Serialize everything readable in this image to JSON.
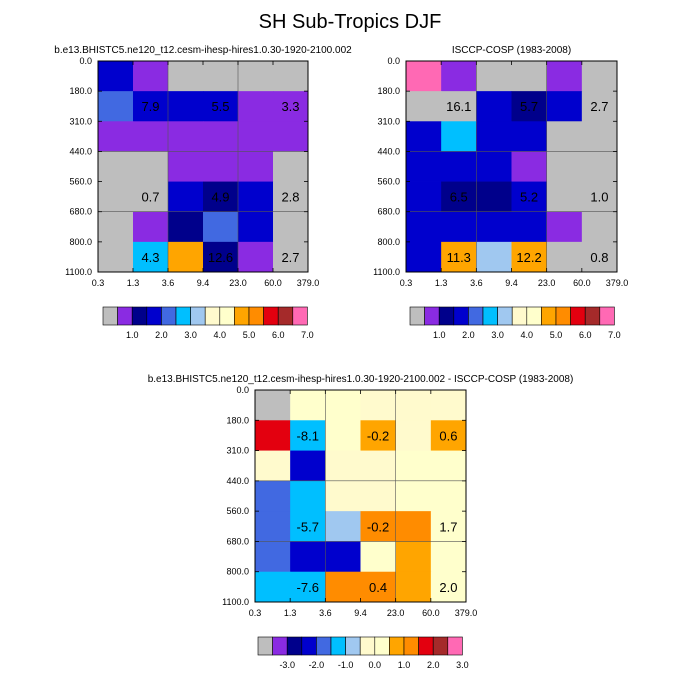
{
  "figure_title": "SH Sub-Tropics DJF",
  "chart_data": [
    {
      "type": "heatmap",
      "title": "b.e13.BHISTC5.ne120_t12.cesm-ihesp-hires1.0.30-1920-2100.002",
      "x_edges": [
        "0.3",
        "1.3",
        "3.6",
        "9.4",
        "23.0",
        "60.0",
        "379.0"
      ],
      "y_edges": [
        "0.0",
        "180.0",
        "310.0",
        "440.0",
        "560.0",
        "680.0",
        "800.0",
        "1100.0"
      ],
      "cells": [
        [
          11,
          13,
          0,
          0,
          0,
          0
        ],
        [
          10,
          11,
          11,
          11,
          13,
          13
        ],
        [
          13,
          13,
          13,
          13,
          13,
          13
        ],
        [
          0,
          0,
          13,
          13,
          13,
          0
        ],
        [
          0,
          0,
          11,
          12,
          11,
          0
        ],
        [
          0,
          13,
          12,
          10,
          11,
          0
        ],
        [
          0,
          9,
          5,
          12,
          13,
          0
        ]
      ],
      "summaries": [
        {
          "text": "7.9",
          "col": 1,
          "row": 1
        },
        {
          "text": "5.5",
          "col": 3,
          "row": 1
        },
        {
          "text": "3.3",
          "col": 5,
          "row": 1
        },
        {
          "text": "0.7",
          "col": 1,
          "row": 4
        },
        {
          "text": "4.9",
          "col": 3,
          "row": 4
        },
        {
          "text": "2.8",
          "col": 5,
          "row": 4
        },
        {
          "text": "4.3",
          "col": 1,
          "row": 6
        },
        {
          "text": "12.6",
          "col": 3,
          "row": 6
        },
        {
          "text": "2.7",
          "col": 5,
          "row": 6
        }
      ],
      "colorbar_labels": [
        "1.0",
        "2.0",
        "3.0",
        "4.0",
        "5.0",
        "6.0",
        "7.0"
      ]
    },
    {
      "type": "heatmap",
      "title": "ISCCP-COSP (1983-2008)",
      "x_edges": [
        "0.3",
        "1.3",
        "3.6",
        "9.4",
        "23.0",
        "60.0",
        "379.0"
      ],
      "y_edges": [
        "0.0",
        "180.0",
        "310.0",
        "440.0",
        "560.0",
        "680.0",
        "800.0",
        "1100.0"
      ],
      "cells": [
        [
          1,
          13,
          0,
          0,
          13,
          0
        ],
        [
          0,
          0,
          11,
          12,
          11,
          0
        ],
        [
          11,
          9,
          11,
          11,
          0,
          0
        ],
        [
          11,
          11,
          11,
          13,
          0,
          0
        ],
        [
          11,
          12,
          12,
          11,
          0,
          0
        ],
        [
          11,
          11,
          11,
          11,
          13,
          0
        ],
        [
          11,
          5,
          8,
          5,
          0,
          0
        ]
      ],
      "summaries": [
        {
          "text": "16.1",
          "col": 1,
          "row": 1
        },
        {
          "text": "5.7",
          "col": 3,
          "row": 1
        },
        {
          "text": "2.7",
          "col": 5,
          "row": 1
        },
        {
          "text": "6.5",
          "col": 1,
          "row": 4
        },
        {
          "text": "5.2",
          "col": 3,
          "row": 4
        },
        {
          "text": "1.0",
          "col": 5,
          "row": 4
        },
        {
          "text": "11.3",
          "col": 1,
          "row": 6
        },
        {
          "text": "12.2",
          "col": 3,
          "row": 6
        },
        {
          "text": "0.8",
          "col": 5,
          "row": 6
        }
      ],
      "colorbar_labels": [
        "1.0",
        "2.0",
        "3.0",
        "4.0",
        "5.0",
        "6.0",
        "7.0"
      ]
    },
    {
      "type": "heatmap",
      "title": "b.e13.BHISTC5.ne120_t12.cesm-ihesp-hires1.0.30-1920-2100.002 - ISCCP-COSP (1983-2008)",
      "x_edges": [
        "0.3",
        "1.3",
        "3.6",
        "9.4",
        "23.0",
        "60.0",
        "379.0"
      ],
      "y_edges": [
        "0.0",
        "180.0",
        "310.0",
        "440.0",
        "560.0",
        "680.0",
        "800.0",
        "1100.0"
      ],
      "cells": [
        [
          0,
          6,
          6,
          7,
          7,
          7
        ],
        [
          3,
          9,
          6,
          5,
          7,
          5
        ],
        [
          7,
          11,
          7,
          7,
          6,
          6
        ],
        [
          10,
          9,
          7,
          7,
          6,
          6
        ],
        [
          10,
          9,
          8,
          4,
          4,
          6
        ],
        [
          10,
          11,
          11,
          6,
          5,
          6
        ],
        [
          9,
          9,
          4,
          4,
          5,
          6
        ]
      ],
      "summaries": [
        {
          "text": "-8.1",
          "col": 1,
          "row": 1
        },
        {
          "text": "-0.2",
          "col": 3,
          "row": 1
        },
        {
          "text": "0.6",
          "col": 5,
          "row": 1
        },
        {
          "text": "-5.7",
          "col": 1,
          "row": 4
        },
        {
          "text": "-0.2",
          "col": 3,
          "row": 4
        },
        {
          "text": "1.7",
          "col": 5,
          "row": 4
        },
        {
          "text": "-7.6",
          "col": 1,
          "row": 6
        },
        {
          "text": "0.4",
          "col": 3,
          "row": 6
        },
        {
          "text": "2.0",
          "col": 5,
          "row": 6
        }
      ],
      "colorbar_labels": [
        "-3.0",
        "-2.0",
        "-1.0",
        "0.0",
        "1.0",
        "2.0",
        "3.0"
      ]
    }
  ],
  "palette": [
    "#bebebe",
    "#ff69b4",
    "#a52a2a",
    "#e3000f",
    "#ff8c00",
    "#ffa500",
    "#ffffcc",
    "#fffacd",
    "#a0c8f0",
    "#00bfff",
    "#4169e1",
    "#0000cd",
    "#00008b",
    "#8a2be2"
  ]
}
